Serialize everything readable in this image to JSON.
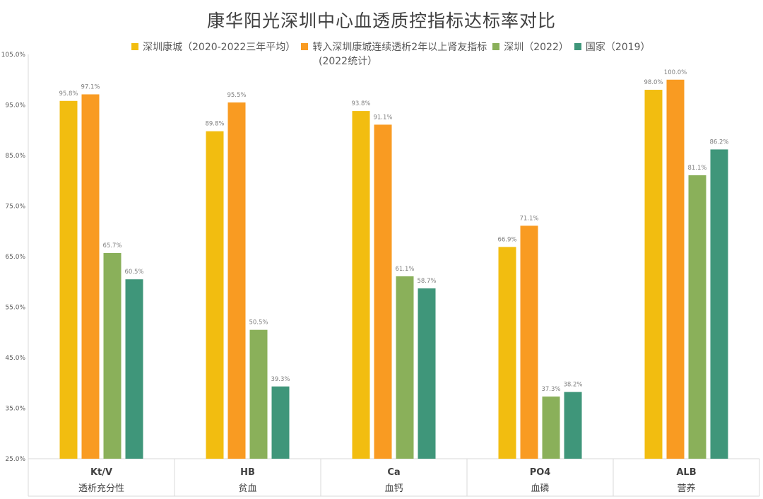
{
  "colors": {
    "series": [
      "#F2BD10",
      "#F99B22",
      "#8AB05A",
      "#3F967A"
    ],
    "grid": "#d9d9d9",
    "axis_text": "#595959",
    "label_text": "#7f7f7f"
  },
  "chart_data": {
    "type": "bar",
    "title": "康华阳光深圳中心血透质控指标达标率对比",
    "categories": [
      "Kt/V",
      "HB",
      "Ca",
      "PO4",
      "ALB"
    ],
    "category_subtitles": [
      "透析充分性",
      "贫血",
      "血钙",
      "血磷",
      "营养"
    ],
    "series": [
      {
        "name": "深圳康城（2020-2022三年平均）",
        "values": [
          95.8,
          89.8,
          93.8,
          66.9,
          98.0
        ]
      },
      {
        "name": "转入深圳康城连续透析2年以上肾友指标",
        "name_cont": "(2022统计）",
        "values": [
          97.1,
          95.5,
          91.1,
          71.1,
          100.0
        ]
      },
      {
        "name": "深圳（2022）",
        "values": [
          65.7,
          50.5,
          61.1,
          37.3,
          81.1
        ]
      },
      {
        "name": "国家（2019）",
        "values": [
          60.5,
          39.3,
          58.7,
          38.2,
          86.2
        ]
      }
    ],
    "value_labels": [
      [
        "95.8%",
        "89.8%",
        "93.8%",
        "66.9%",
        "98.0%"
      ],
      [
        "97.1%",
        "95.5%",
        "91.1%",
        "71.1%",
        "100.0%"
      ],
      [
        "65.7%",
        "50.5%",
        "61.1%",
        "37.3%",
        "81.1%"
      ],
      [
        "60.5%",
        "39.3%",
        "58.7%",
        "38.2%",
        "86.2%"
      ]
    ],
    "y_ticks": [
      25.0,
      35.0,
      45.0,
      55.0,
      65.0,
      75.0,
      85.0,
      95.0,
      105.0
    ],
    "y_tick_labels": [
      "25.0%",
      "35.0%",
      "45.0%",
      "55.0%",
      "65.0%",
      "75.0%",
      "85.0%",
      "95.0%",
      "105.0%"
    ],
    "ylim": [
      25,
      105
    ],
    "legend_position": "top",
    "grid": false
  }
}
